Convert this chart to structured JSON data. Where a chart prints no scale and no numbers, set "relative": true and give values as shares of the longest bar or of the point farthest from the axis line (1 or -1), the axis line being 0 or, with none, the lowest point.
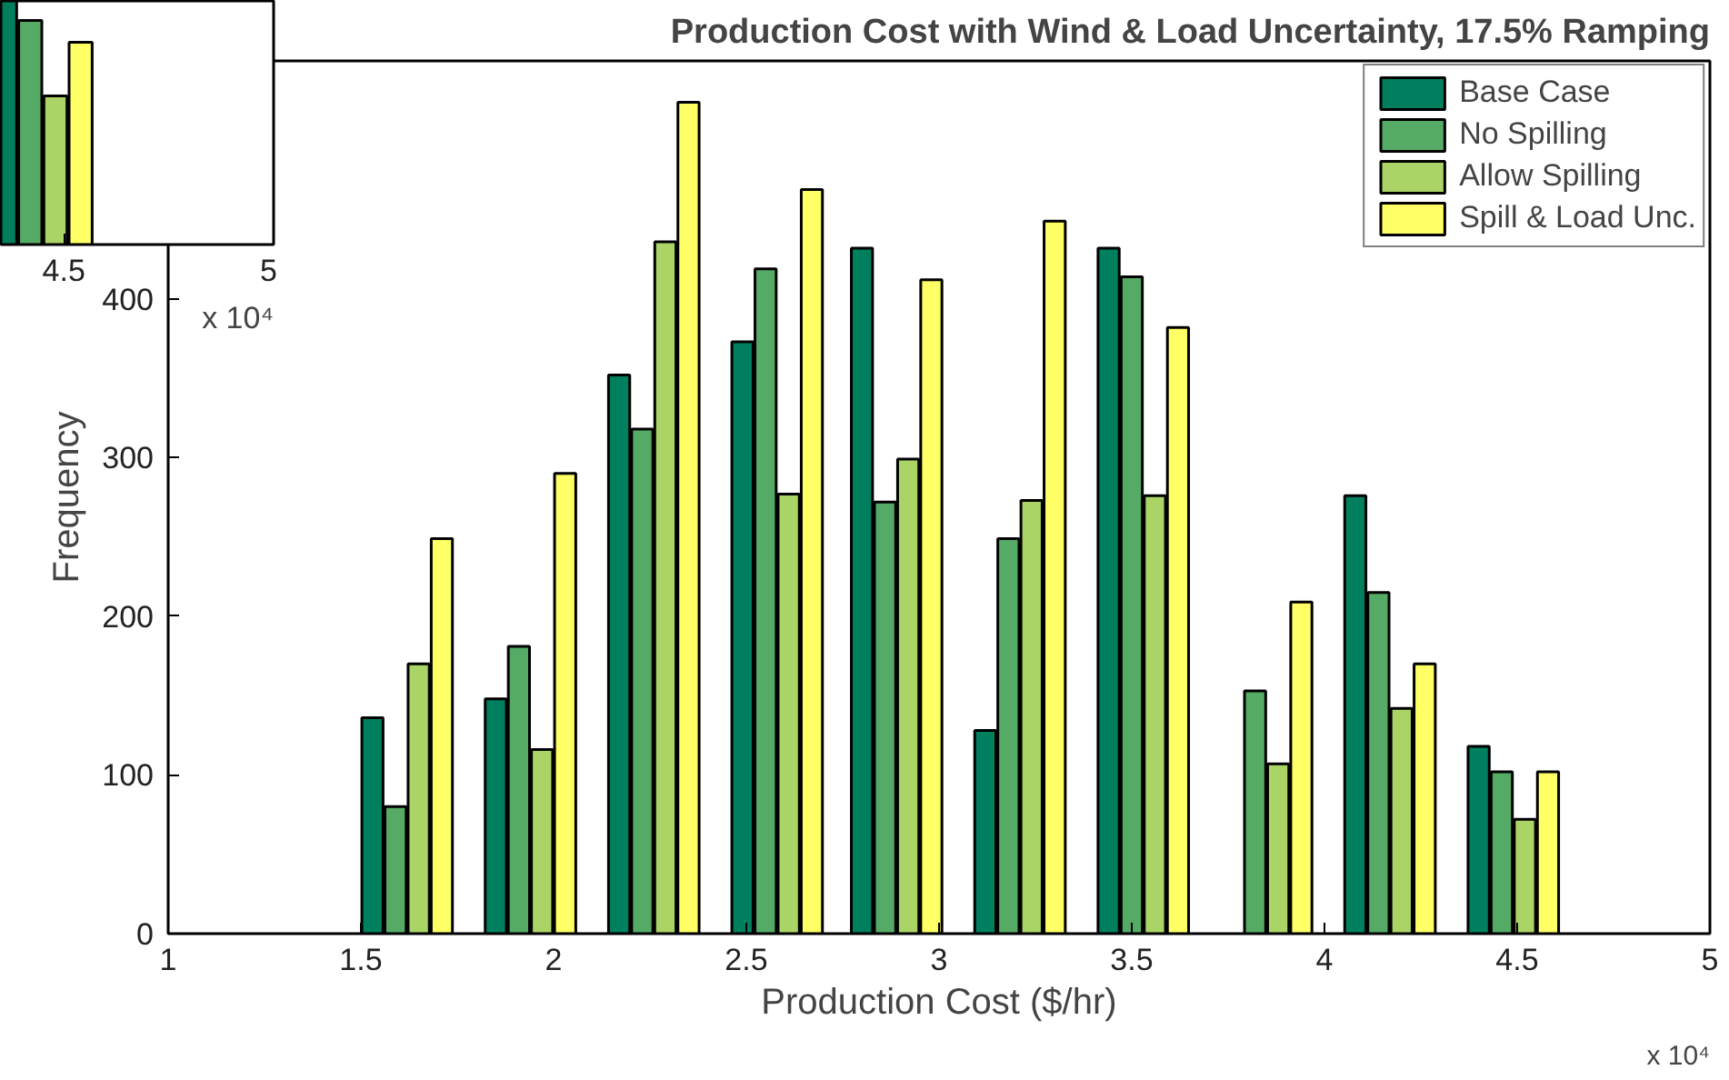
{
  "chart_data": [
    {
      "type": "bar",
      "title": "Production Cost with Wind & Load Uncertainty, 17.5% Ramping",
      "xlabel": "Production Cost ($/hr)",
      "ylabel": "Frequency",
      "series": [
        {
          "name": "Base Case",
          "color": "#007f5f",
          "x": [
            1.53,
            1.85,
            2.17,
            2.49,
            2.8,
            3.12,
            3.44,
            3.76,
            4.08,
            4.4
          ],
          "values": [
            136,
            148,
            352,
            373,
            432,
            128,
            432,
            null,
            276,
            118
          ]
        },
        {
          "name": "No Spilling",
          "color": "#55aa66",
          "x": [
            1.59,
            1.91,
            2.23,
            2.55,
            2.86,
            3.18,
            3.5,
            3.82,
            4.14,
            4.46
          ],
          "values": [
            80,
            181,
            318,
            419,
            272,
            249,
            414,
            153,
            215,
            102
          ]
        },
        {
          "name": "Allow Spilling",
          "color": "#aad466",
          "x": [
            1.65,
            1.97,
            2.29,
            2.61,
            2.92,
            3.24,
            3.56,
            3.88,
            4.2,
            4.52
          ],
          "values": [
            170,
            116,
            436,
            277,
            299,
            273,
            276,
            107,
            142,
            72
          ]
        },
        {
          "name": "Spill & Load Unc.",
          "color": "#ffff66",
          "x": [
            1.71,
            2.03,
            2.35,
            2.67,
            2.98,
            3.3,
            3.62,
            3.94,
            4.26,
            4.58
          ],
          "values": [
            249,
            290,
            524,
            469,
            412,
            449,
            382,
            209,
            170,
            102
          ]
        }
      ],
      "xlim": [
        1,
        5
      ],
      "xticks": [
        1,
        1.5,
        2,
        2.5,
        3,
        3.5,
        4,
        4.5,
        5
      ],
      "ylim": [
        0,
        550
      ],
      "yticks": [
        0,
        100,
        200,
        300,
        400,
        {
          "value": 500,
          "label": null
        }
      ],
      "grid": false,
      "legend": "top right",
      "annotations": [
        "x 10⁴"
      ]
    },
    {
      "type": "bar",
      "relative": true,
      "series": [
        {
          "color": "#007f5f",
          "x": [
            4.36
          ],
          "values": [
            1
          ]
        },
        {
          "color": "#55aa66",
          "x": [
            4.42
          ],
          "values": [
            0.92
          ]
        },
        {
          "color": "#aad466",
          "x": [
            4.48
          ],
          "values": [
            0.61
          ]
        },
        {
          "color": "#ffff66",
          "x": [
            4.54
          ],
          "values": [
            0.83
          ]
        }
      ],
      "xlim": [
        4.35,
        5
      ],
      "xticks": [
        4.5,
        5
      ],
      "tick_labels": "x",
      "grid": false,
      "legend": false,
      "annotations": [
        "x 10⁴"
      ]
    }
  ]
}
